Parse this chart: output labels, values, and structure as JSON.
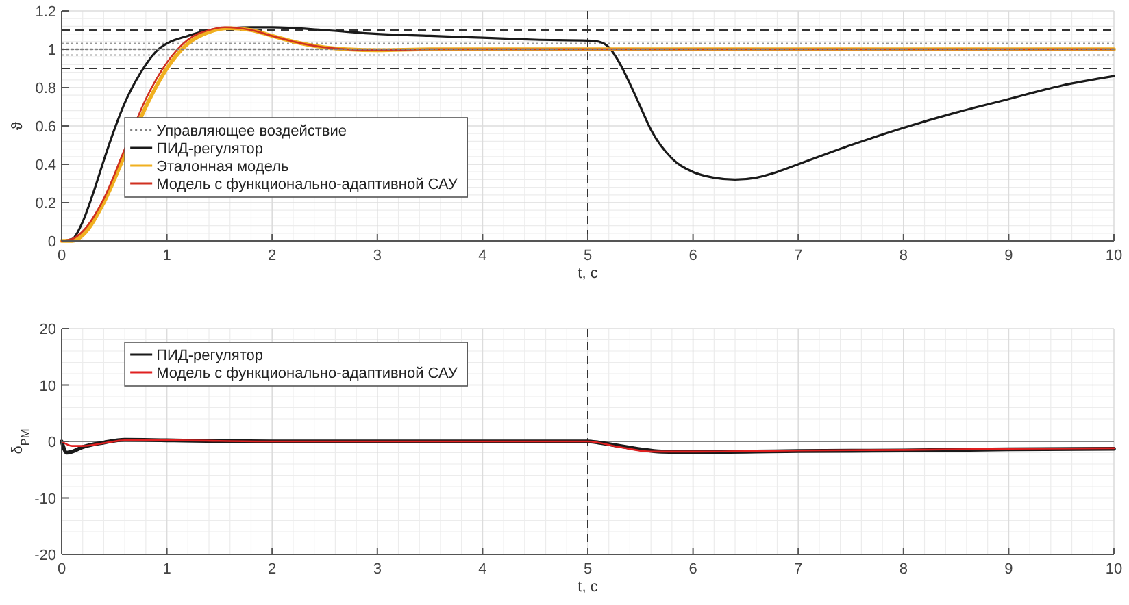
{
  "chart_data": [
    {
      "type": "line",
      "xlabel": "t, с",
      "ylabel": "ϑ",
      "xlim": [
        0,
        10
      ],
      "xticks": [
        0,
        1,
        2,
        3,
        4,
        5,
        6,
        7,
        8,
        9,
        10
      ],
      "ylim": [
        0,
        1.2
      ],
      "yticks": [
        0,
        0.2,
        0.4,
        0.6,
        0.8,
        1,
        1.2
      ],
      "grid": true,
      "legend": "left",
      "series": [
        {
          "name": "Управляющее воздействие",
          "color": "#808080",
          "line_style": "dotted",
          "x": [
            0,
            10
          ],
          "values": [
            1,
            1
          ]
        },
        {
          "name": "ПИД-регулятор",
          "color": "#1a1a1a",
          "x": [
            0,
            0.1,
            0.2,
            0.3,
            0.4,
            0.5,
            0.6,
            0.7,
            0.8,
            0.9,
            1,
            1.2,
            1.4,
            1.6,
            1.8,
            2,
            2.5,
            3,
            3.5,
            4,
            4.5,
            5,
            5.1,
            5.2,
            5.3,
            5.4,
            5.5,
            5.6,
            5.8,
            6,
            6.2,
            6.4,
            6.6,
            6.8,
            7,
            7.5,
            8,
            8.5,
            9,
            9.5,
            10
          ],
          "values": [
            0,
            0.01,
            0.1,
            0.25,
            0.42,
            0.58,
            0.72,
            0.83,
            0.92,
            0.99,
            1.03,
            1.07,
            1.1,
            1.11,
            1.115,
            1.115,
            1.1,
            1.08,
            1.07,
            1.06,
            1.05,
            1.045,
            1.04,
            1.01,
            0.93,
            0.82,
            0.7,
            0.58,
            0.43,
            0.36,
            0.33,
            0.32,
            0.33,
            0.36,
            0.4,
            0.5,
            0.59,
            0.67,
            0.74,
            0.81,
            0.86
          ]
        },
        {
          "name": "Эталонная модель",
          "color": "#f0b020",
          "x": [
            0,
            0.1,
            0.2,
            0.4,
            0.6,
            0.8,
            1,
            1.2,
            1.4,
            1.6,
            1.8,
            2,
            2.2,
            2.5,
            3,
            3.5,
            4,
            5,
            10
          ],
          "values": [
            0,
            0,
            0.03,
            0.2,
            0.45,
            0.7,
            0.9,
            1.03,
            1.09,
            1.11,
            1.1,
            1.07,
            1.04,
            1.01,
            0.995,
            1,
            1,
            1,
            1
          ]
        },
        {
          "name": "Модель с функционально-адаптивной САУ",
          "color": "#d03020",
          "x": [
            0,
            0.1,
            0.2,
            0.4,
            0.6,
            0.8,
            1,
            1.2,
            1.4,
            1.55,
            1.8,
            2,
            2.2,
            2.5,
            3,
            3.5,
            5,
            5.5,
            10
          ],
          "values": [
            0,
            0.01,
            0.05,
            0.22,
            0.48,
            0.74,
            0.93,
            1.05,
            1.1,
            1.115,
            1.1,
            1.07,
            1.04,
            1.01,
            0.995,
            1,
            1,
            1,
            1
          ]
        }
      ],
      "ref_lines": [
        {
          "axis": "y",
          "value": 1.1,
          "line_style": "dashed",
          "color": "#333333"
        },
        {
          "axis": "y",
          "value": 0.9,
          "line_style": "dashed",
          "color": "#333333"
        },
        {
          "axis": "y",
          "value": 1.03,
          "line_style": "dotted",
          "color": "#999999"
        },
        {
          "axis": "y",
          "value": 0.97,
          "line_style": "dotted",
          "color": "#999999"
        },
        {
          "axis": "x",
          "value": 5,
          "line_style": "dashed",
          "color": "#333333"
        }
      ]
    },
    {
      "type": "line",
      "xlabel": "t, с",
      "ylabel": "δ$_{РМ}$",
      "xlim": [
        0,
        10
      ],
      "xticks": [
        0,
        1,
        2,
        3,
        4,
        5,
        6,
        7,
        8,
        9,
        10
      ],
      "ylim": [
        -20,
        20
      ],
      "yticks": [
        -20,
        -10,
        0,
        10,
        20
      ],
      "grid": true,
      "legend": "top left",
      "series": [
        {
          "name": "ПИД-регулятор",
          "color": "#1a1a1a",
          "x": [
            0,
            0.05,
            0.1,
            0.2,
            0.4,
            0.6,
            1,
            2,
            5,
            5.1,
            5.3,
            5.5,
            5.7,
            6,
            7,
            8,
            9,
            10
          ],
          "values": [
            0,
            -2,
            -1.8,
            -1,
            -0.2,
            0.3,
            0.2,
            0,
            0,
            -0.2,
            -0.8,
            -1.4,
            -1.8,
            -1.9,
            -1.7,
            -1.6,
            -1.4,
            -1.3
          ]
        },
        {
          "name": "Модель с функционально-адаптивной САУ",
          "color": "#e02020",
          "x": [
            0,
            0.1,
            0.2,
            0.4,
            0.6,
            1,
            2,
            5,
            5.3,
            5.6,
            6,
            7,
            8,
            9,
            10
          ],
          "values": [
            0,
            -0.8,
            -0.8,
            -0.3,
            0.2,
            0.2,
            0,
            0,
            -1,
            -1.8,
            -1.8,
            -1.6,
            -1.5,
            -1.3,
            -1.2
          ]
        }
      ],
      "ref_lines": [
        {
          "axis": "y",
          "value": 0,
          "line_style": "solid",
          "color": "#808080"
        },
        {
          "axis": "x",
          "value": 5,
          "line_style": "dashed",
          "color": "#333333"
        }
      ]
    }
  ]
}
